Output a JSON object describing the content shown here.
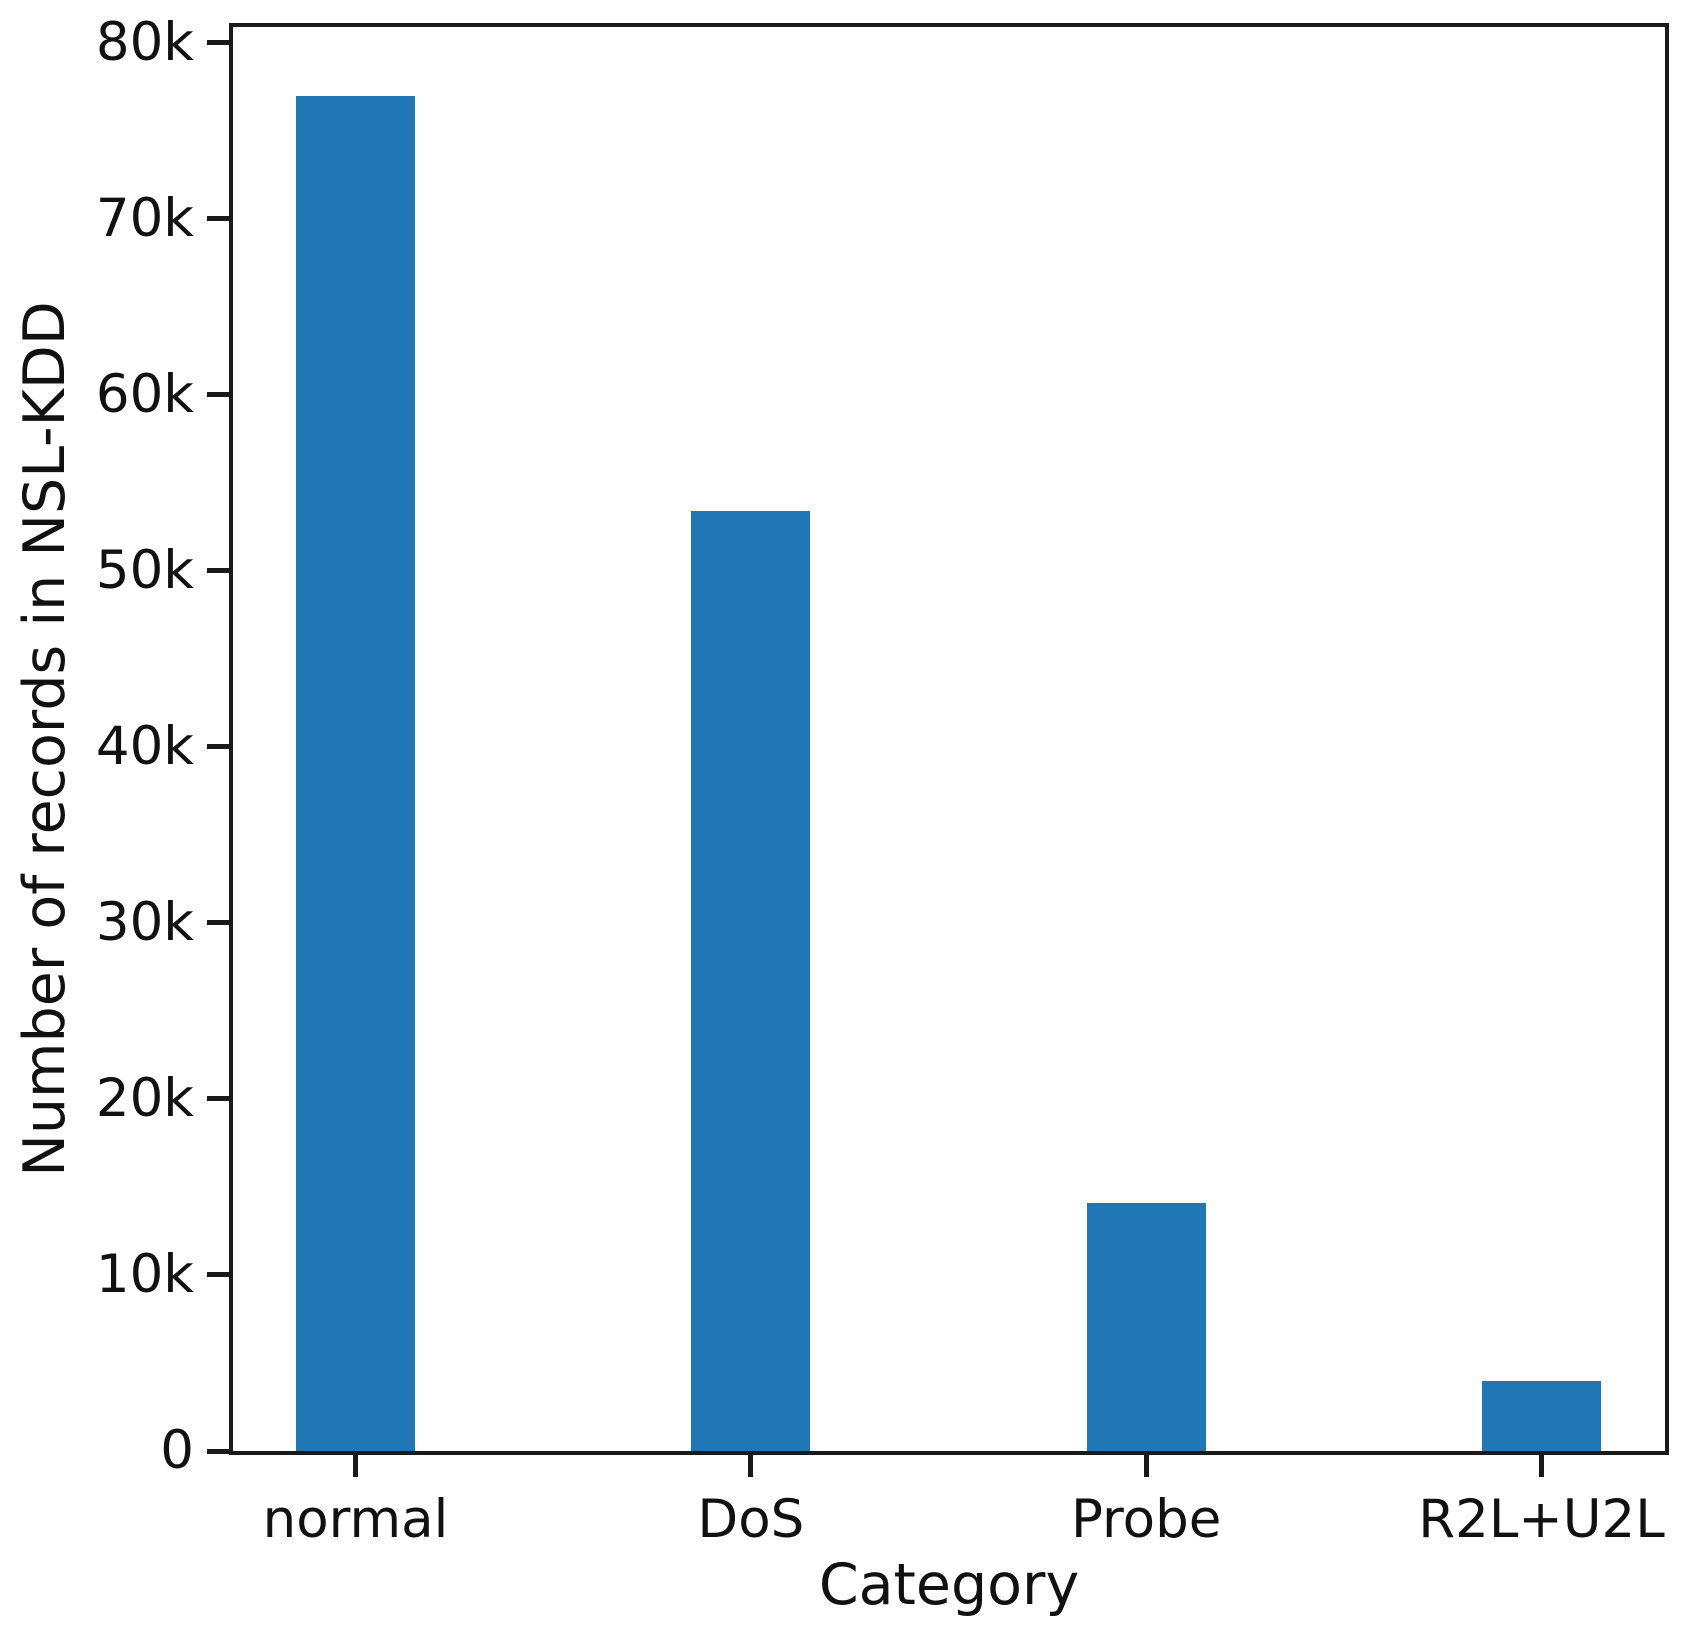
{
  "chart_data": {
    "type": "bar",
    "title": "",
    "categories": [
      "normal",
      "DoS",
      "Probe",
      "R2L+U2L"
    ],
    "values": [
      77000,
      53400,
      14100,
      4000
    ],
    "series_name": "Number of records",
    "xlabel": "Category",
    "ylabel": "Number of records in NSL-KDD",
    "ylim": [
      0,
      80900
    ],
    "yticks": [
      {
        "value": 0,
        "label": "0"
      },
      {
        "value": 10000,
        "label": "10k"
      },
      {
        "value": 20000,
        "label": "20k"
      },
      {
        "value": 30000,
        "label": "30k"
      },
      {
        "value": 40000,
        "label": "40k"
      },
      {
        "value": 50000,
        "label": "50k"
      },
      {
        "value": 60000,
        "label": "60k"
      },
      {
        "value": 70000,
        "label": "70k"
      },
      {
        "value": 80000,
        "label": "80k"
      }
    ],
    "grid": false,
    "legend": "none",
    "bar_color": "#2177b4",
    "axis_color": "#1a1a1a",
    "text_color": "#111111",
    "background_color": "#ffffff"
  }
}
